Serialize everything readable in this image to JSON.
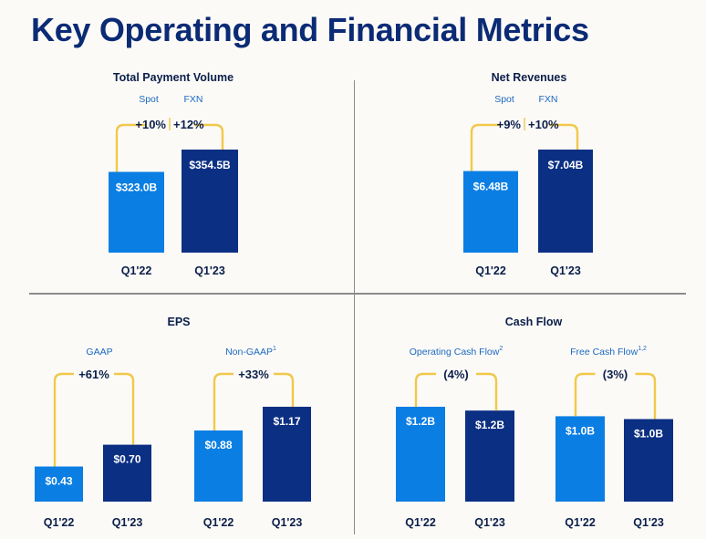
{
  "title": "Key Operating and Financial Metrics",
  "colors": {
    "light": "#0a7ee3",
    "dark": "#0b2f83",
    "bracket": "#f1c84b",
    "heading": "#0b1f4a",
    "sublabel": "#1a69c2",
    "delta": "#0b1f4a"
  },
  "chart_data": [
    {
      "type": "bar",
      "title": "Total Payment Volume",
      "categories": [
        "Q1'22",
        "Q1'23"
      ],
      "values": [
        323.0,
        354.5
      ],
      "value_labels": [
        "$323.0B",
        "$354.5B"
      ],
      "unit": "$B",
      "sublabels": [
        "Spot",
        "FXN"
      ],
      "growth": [
        "+10%",
        "+12%"
      ]
    },
    {
      "type": "bar",
      "title": "Net Revenues",
      "categories": [
        "Q1'22",
        "Q1'23"
      ],
      "values": [
        6.48,
        7.04
      ],
      "value_labels": [
        "$6.48B",
        "$7.04B"
      ],
      "unit": "$B",
      "sublabels": [
        "Spot",
        "FXN"
      ],
      "growth": [
        "+9%",
        "+10%"
      ]
    },
    {
      "type": "bar",
      "title": "EPS",
      "groups": [
        {
          "label": "GAAP",
          "footnote": "",
          "categories": [
            "Q1'22",
            "Q1'23"
          ],
          "values": [
            0.43,
            0.7
          ],
          "value_labels": [
            "$0.43",
            "$0.70"
          ],
          "growth": "+61%"
        },
        {
          "label": "Non-GAAP",
          "footnote": "1",
          "categories": [
            "Q1'22",
            "Q1'23"
          ],
          "values": [
            0.88,
            1.17
          ],
          "value_labels": [
            "$0.88",
            "$1.17"
          ],
          "growth": "+33%"
        }
      ]
    },
    {
      "type": "bar",
      "title": "Cash Flow",
      "groups": [
        {
          "label": "Operating Cash Flow",
          "footnote": "2",
          "categories": [
            "Q1'22",
            "Q1'23"
          ],
          "values": [
            1.2,
            1.2
          ],
          "value_labels": [
            "$1.2B",
            "$1.2B"
          ],
          "growth": "(4%)"
        },
        {
          "label": "Free Cash Flow",
          "footnote": "1,2",
          "categories": [
            "Q1'22",
            "Q1'23"
          ],
          "values": [
            1.0,
            1.0
          ],
          "value_labels": [
            "$1.0B",
            "$1.0B"
          ],
          "growth": "(3%)"
        }
      ]
    }
  ]
}
